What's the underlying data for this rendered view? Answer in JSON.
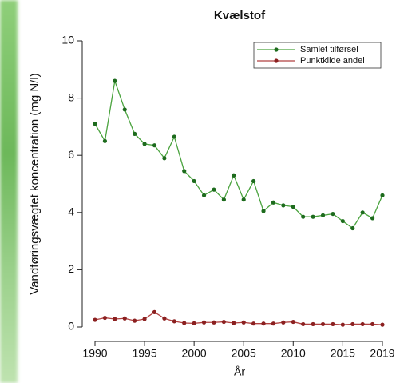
{
  "chart_data": {
    "type": "line",
    "title": "Kvælstof",
    "x_label": "År",
    "y_label": "Vandføringsvægtet koncentration (mg N/l)",
    "x": [
      1990,
      1991,
      1992,
      1993,
      1994,
      1995,
      1996,
      1997,
      1998,
      1999,
      2000,
      2001,
      2002,
      2003,
      2004,
      2005,
      2006,
      2007,
      2008,
      2009,
      2010,
      2011,
      2012,
      2013,
      2014,
      2015,
      2016,
      2017,
      2018,
      2019
    ],
    "series": [
      {
        "name": "Samlet tilførsel",
        "color": "#4aa33e",
        "marker_color": "#1d6b1d",
        "values": [
          7.1,
          6.5,
          8.6,
          7.6,
          6.75,
          6.4,
          6.35,
          5.9,
          6.65,
          5.45,
          5.1,
          4.6,
          4.8,
          4.45,
          5.3,
          4.45,
          5.1,
          4.05,
          4.35,
          4.25,
          4.2,
          3.85,
          3.85,
          3.9,
          3.95,
          3.7,
          3.45,
          4.0,
          3.8,
          4.6
        ]
      },
      {
        "name": "Punktkilde andel",
        "color": "#b04040",
        "marker_color": "#8b2020",
        "values": [
          0.25,
          0.32,
          0.28,
          0.3,
          0.22,
          0.28,
          0.52,
          0.3,
          0.2,
          0.14,
          0.13,
          0.16,
          0.16,
          0.18,
          0.14,
          0.16,
          0.12,
          0.12,
          0.12,
          0.16,
          0.18,
          0.1,
          0.1,
          0.1,
          0.1,
          0.08,
          0.1,
          0.1,
          0.1,
          0.08
        ]
      }
    ],
    "xlim": [
      1990,
      2019
    ],
    "xticks": [
      1990,
      1995,
      2000,
      2005,
      2010,
      2015,
      2019
    ],
    "ylim": [
      0,
      10
    ],
    "yticks": [
      0,
      2,
      4,
      6,
      8,
      10
    ],
    "legend": "top-right"
  }
}
